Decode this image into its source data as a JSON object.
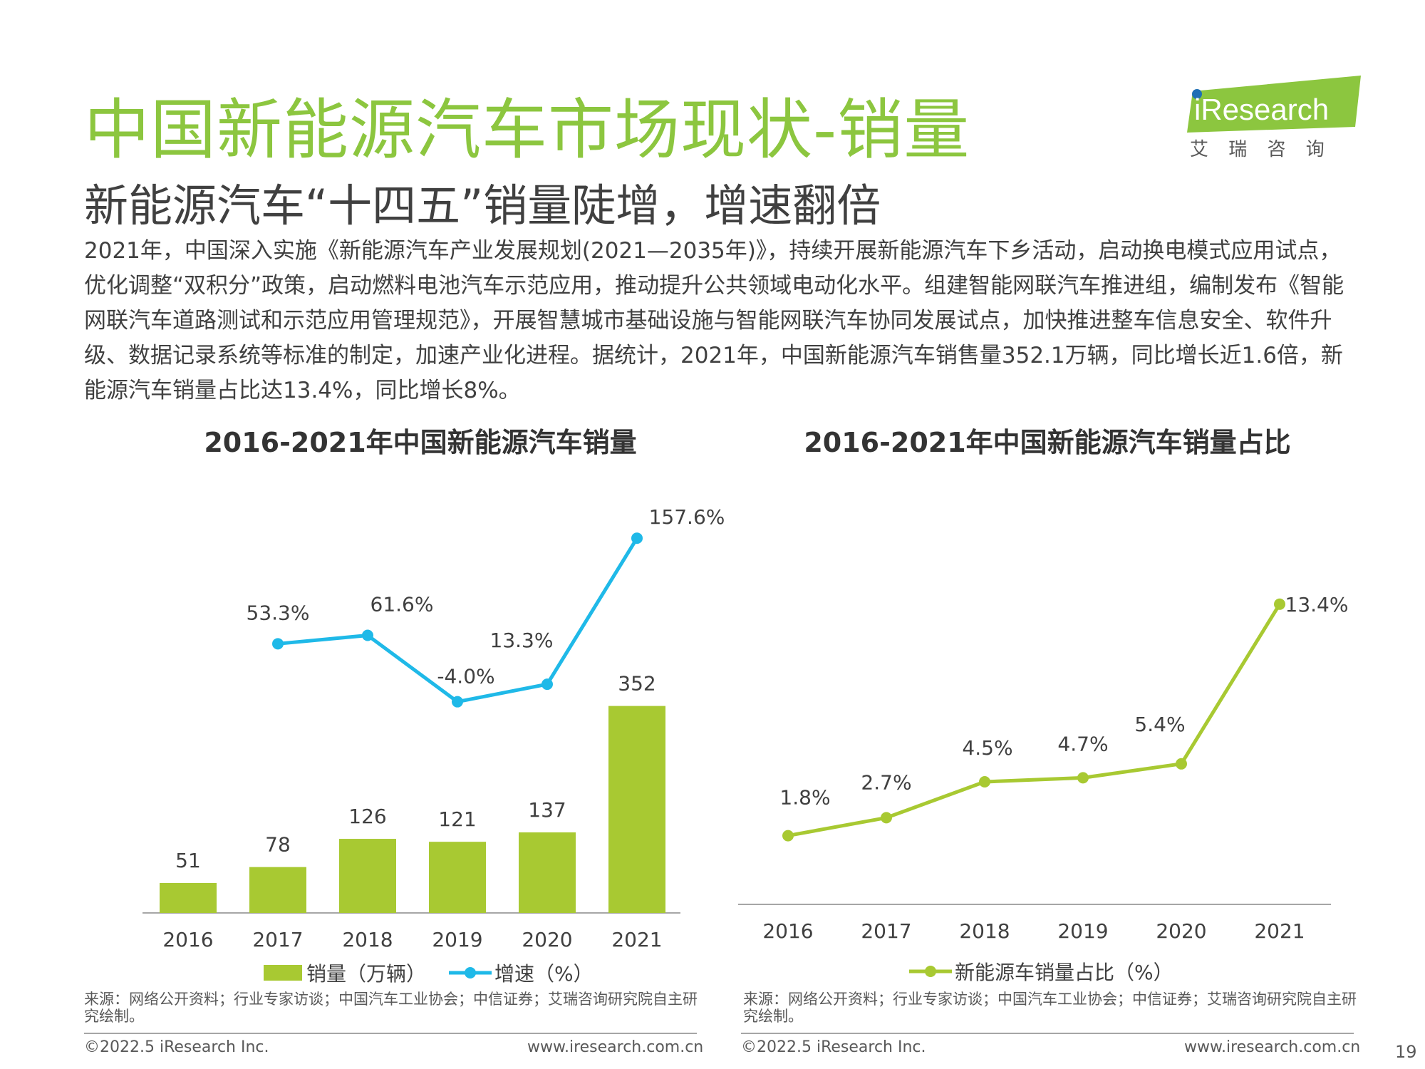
{
  "header": {
    "title": "中国新能源汽车市场现状-销量",
    "subtitle": "新能源汽车“十四五”销量陡增，增速翻倍",
    "body": "2021年，中国深入实施《新能源汽车产业发展规划(2021—2035年)》，持续开展新能源汽车下乡活动，启动换电模式应用试点，优化调整“双积分”政策，启动燃料电池汽车示范应用，推动提升公共领域电动化水平。组建智能网联汽车推进组，编制发布《智能网联汽车道路测试和示范应用管理规范》，开展智慧城市基础设施与智能网联汽车协同发展试点，加快推进整车信息安全、软件升级、数据记录系统等标准的制定，加速产业化进程。据统计，2021年，中国新能源汽车销售量352.1万辆，同比增长近1.6倍，新能源汽车销量占比达13.4%，同比增长8%。"
  },
  "logo": {
    "brand": "iResearch",
    "cn": "艾 瑞 咨 询",
    "accent_color": "#8cc63f",
    "dot_color": "#1f6fb5"
  },
  "chart_data": [
    {
      "type": "bar",
      "title": "2016-2021年中国新能源汽车销量",
      "categories": [
        "2016",
        "2017",
        "2018",
        "2019",
        "2020",
        "2021"
      ],
      "series": [
        {
          "name": "销量（万辆）",
          "type": "bar",
          "values": [
            51,
            78,
            126,
            121,
            137,
            352
          ],
          "labels": [
            "51",
            "78",
            "126",
            "121",
            "137",
            "352"
          ],
          "color": "#a8c932"
        },
        {
          "name": "增速（%）",
          "type": "line",
          "values": [
            null,
            53.3,
            61.6,
            -4.0,
            13.3,
            157.6
          ],
          "labels": [
            "",
            "53.3%",
            "61.6%",
            "-4.0%",
            "13.3%",
            "157.6%"
          ],
          "color": "#1fb9e8"
        }
      ],
      "legend": "bottom",
      "grid": false
    },
    {
      "type": "line",
      "title": "2016-2021年中国新能源汽车销量占比",
      "categories": [
        "2016",
        "2017",
        "2018",
        "2019",
        "2020",
        "2021"
      ],
      "series": [
        {
          "name": "新能源车销量占比（%）",
          "values": [
            1.8,
            2.7,
            4.5,
            4.7,
            5.4,
            13.4
          ],
          "labels": [
            "1.8%",
            "2.7%",
            "4.5%",
            "4.7%",
            "5.4%",
            "13.4%"
          ],
          "color": "#a8c932"
        }
      ],
      "legend": "bottom",
      "grid": false
    }
  ],
  "footer": {
    "source": "来源：网络公开资料；行业专家访谈；中国汽车工业协会；中信证券；艾瑞咨询研究院自主研究绘制。",
    "copyright": "©2022.5 iResearch Inc.",
    "website": "www.iresearch.com.cn",
    "page": "19"
  }
}
